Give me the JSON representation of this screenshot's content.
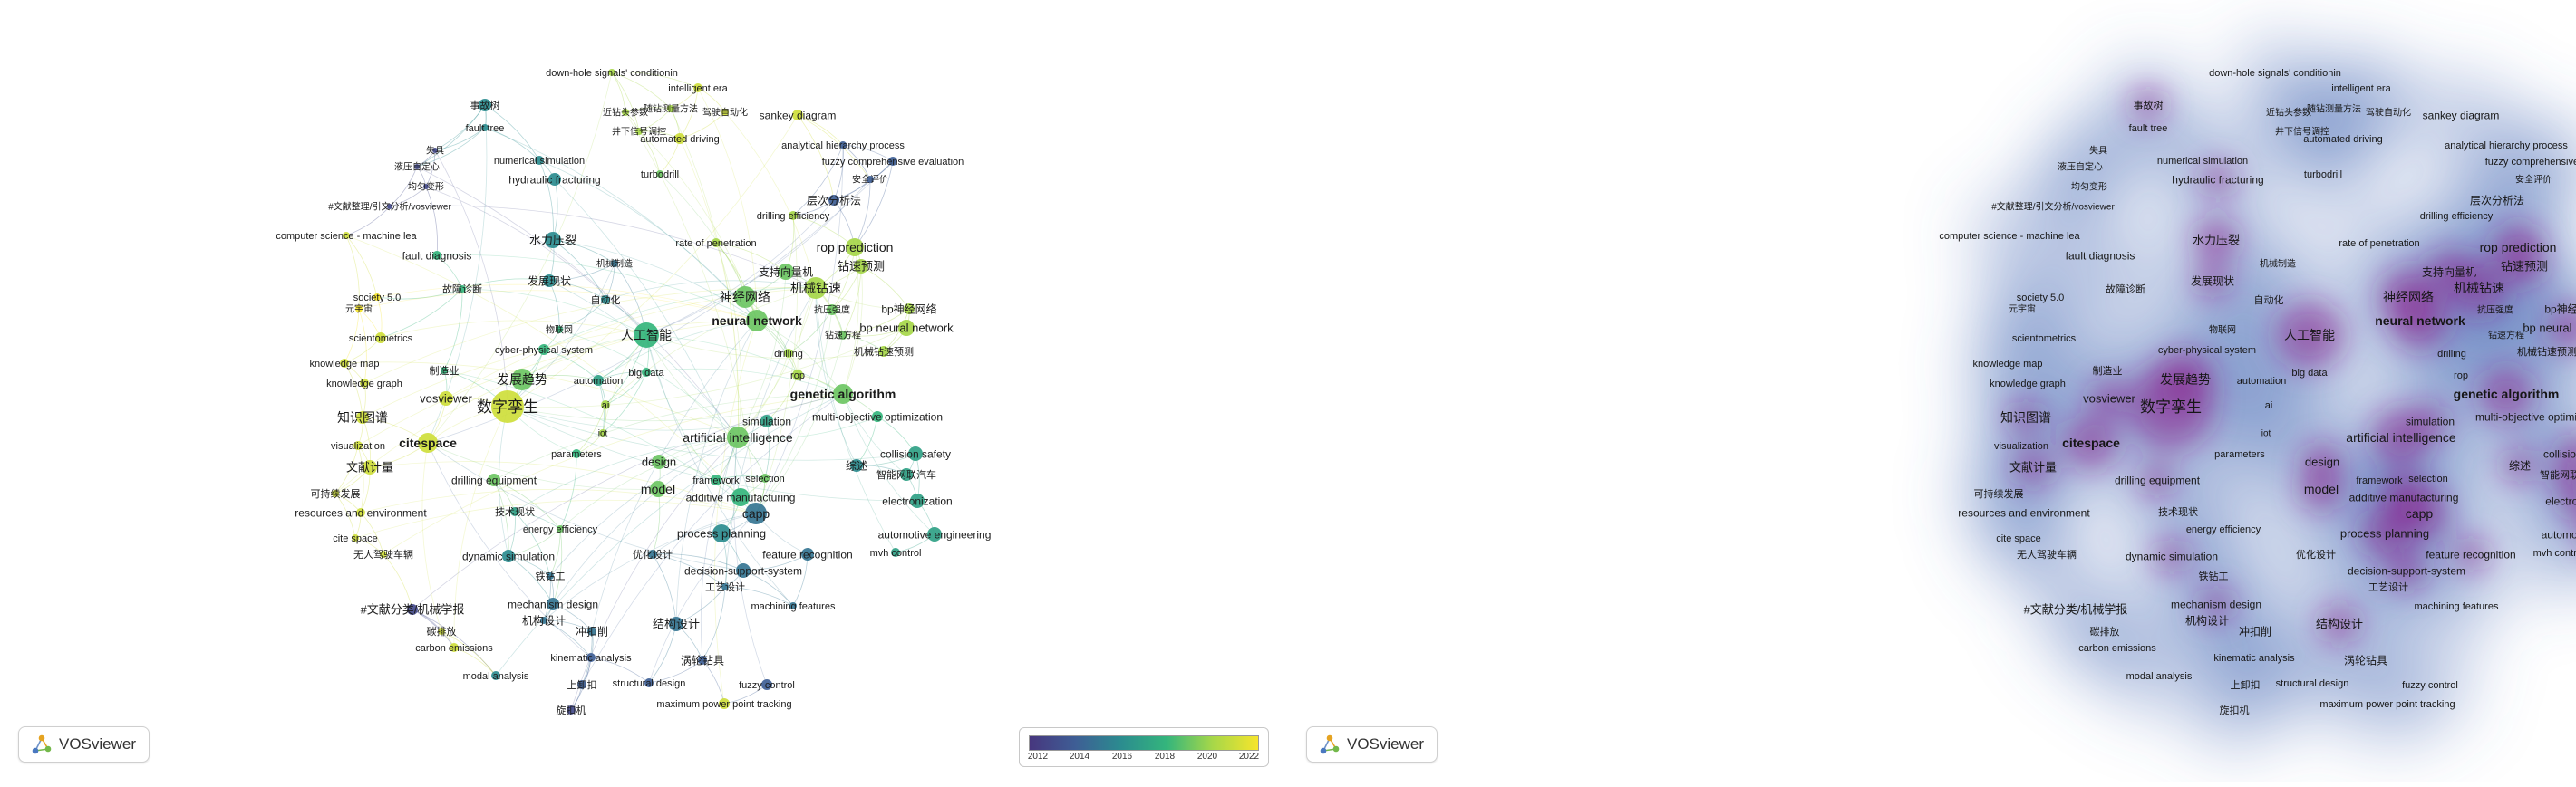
{
  "app": {
    "logo_text": "VOSviewer"
  },
  "legend": {
    "ticks": [
      "2012",
      "2014",
      "2016",
      "2018",
      "2020",
      "2022"
    ],
    "colors": [
      "#47367e",
      "#3e5e95",
      "#2b8c8f",
      "#34b57c",
      "#a6d749",
      "#f6e52c"
    ]
  },
  "colors": {
    "link": "#9fb9d6",
    "density_low": "#c9dcf2",
    "density_mid": "#4d6fb8",
    "density_high": "#8a1f8e"
  },
  "chart_data": {
    "type": "network",
    "views": [
      "overlay visualization",
      "density visualization"
    ],
    "nodes": [
      {
        "label": "down-hole signals' conditionin",
        "year": 2020
      },
      {
        "label": "intelligent era",
        "year": 2021
      },
      {
        "label": "事故树",
        "year": 2016
      },
      {
        "label": "近钻头参数",
        "year": 2020
      },
      {
        "label": "随钻测量方法",
        "year": 2020
      },
      {
        "label": "驾驶自动化",
        "year": 2021
      },
      {
        "label": "sankey diagram",
        "year": 2021
      },
      {
        "label": "fault tree",
        "year": 2016
      },
      {
        "label": "井下信号调控",
        "year": 2020
      },
      {
        "label": "automated driving",
        "year": 2021
      },
      {
        "label": "失具",
        "year": 2013
      },
      {
        "label": "analytical hierarchy process",
        "year": 2014
      },
      {
        "label": "液压自定心",
        "year": 2013
      },
      {
        "label": "numerical simulation",
        "year": 2016
      },
      {
        "label": "fuzzy comprehensive evaluation",
        "year": 2014
      },
      {
        "label": "均匀变形",
        "year": 2013
      },
      {
        "label": "hydraulic fracturing",
        "year": 2016
      },
      {
        "label": "turbodrill",
        "year": 2019
      },
      {
        "label": "安全评价",
        "year": 2014
      },
      {
        "label": "#文献整理/引文分析/vosviewer",
        "year": 2013
      },
      {
        "label": "层次分析法",
        "year": 2014
      },
      {
        "label": "drilling efficiency",
        "year": 2020
      },
      {
        "label": "computer science - machine lea",
        "year": 2021
      },
      {
        "label": "水力压裂",
        "year": 2016
      },
      {
        "label": "rate of penetration",
        "year": 2020
      },
      {
        "label": "rop prediction",
        "year": 2020
      },
      {
        "label": "fault diagnosis",
        "year": 2018
      },
      {
        "label": "机械制造",
        "year": 2015
      },
      {
        "label": "支持向量机",
        "year": 2019
      },
      {
        "label": "钻速预测",
        "year": 2020
      },
      {
        "label": "故障诊断",
        "year": 2018
      },
      {
        "label": "发展现状",
        "year": 2016
      },
      {
        "label": "神经网络",
        "year": 2019
      },
      {
        "label": "机械钻速",
        "year": 2020
      },
      {
        "label": "society 5.0",
        "year": 2022
      },
      {
        "label": "元宇宙",
        "year": 2022
      },
      {
        "label": "自动化",
        "year": 2016
      },
      {
        "label": "抗压强度",
        "year": 2019
      },
      {
        "label": "bp神经网络",
        "year": 2020
      },
      {
        "label": "neural network",
        "year": 2019
      },
      {
        "label": "bp neural network",
        "year": 2020
      },
      {
        "label": "scientometrics",
        "year": 2021
      },
      {
        "label": "物联网",
        "year": 2018
      },
      {
        "label": "人工智能",
        "year": 2018
      },
      {
        "label": "钻速方程",
        "year": 2019
      },
      {
        "label": "机械钻速预测",
        "year": 2020
      },
      {
        "label": "knowledge map",
        "year": 2021
      },
      {
        "label": "制造业",
        "year": 2018
      },
      {
        "label": "cyber-physical system",
        "year": 2018
      },
      {
        "label": "drilling",
        "year": 2020
      },
      {
        "label": "knowledge graph",
        "year": 2021
      },
      {
        "label": "发展趋势",
        "year": 2019
      },
      {
        "label": "automation",
        "year": 2017
      },
      {
        "label": "big data",
        "year": 2018
      },
      {
        "label": "rop",
        "year": 2020
      },
      {
        "label": "vosviewer",
        "year": 2021
      },
      {
        "label": "genetic algorithm",
        "year": 2019
      },
      {
        "label": "数字孪生",
        "year": 2021
      },
      {
        "label": "ai",
        "year": 2020
      },
      {
        "label": "知识图谱",
        "year": 2021
      },
      {
        "label": "simulation",
        "year": 2017
      },
      {
        "label": "multi-objective optimization",
        "year": 2018
      },
      {
        "label": "iot",
        "year": 2020
      },
      {
        "label": "artificial intelligence",
        "year": 2019
      },
      {
        "label": "visualization",
        "year": 2021
      },
      {
        "label": "citespace",
        "year": 2021
      },
      {
        "label": "collision safety",
        "year": 2017
      },
      {
        "label": "parameters",
        "year": 2018
      },
      {
        "label": "design",
        "year": 2019
      },
      {
        "label": "综述",
        "year": 2016
      },
      {
        "label": "智能网联汽车",
        "year": 2017
      },
      {
        "label": "文献计量",
        "year": 2021
      },
      {
        "label": "drilling equipment",
        "year": 2019
      },
      {
        "label": "framework",
        "year": 2018
      },
      {
        "label": "selection",
        "year": 2019
      },
      {
        "label": "electronization",
        "year": 2017
      },
      {
        "label": "可持续发展",
        "year": 2021
      },
      {
        "label": "model",
        "year": 2019
      },
      {
        "label": "additive manufacturing",
        "year": 2018
      },
      {
        "label": "resources and environment",
        "year": 2021
      },
      {
        "label": "技术现状",
        "year": 2017
      },
      {
        "label": "capp",
        "year": 2015
      },
      {
        "label": "energy efficiency",
        "year": 2019
      },
      {
        "label": "automotive engineering",
        "year": 2017
      },
      {
        "label": "cite space",
        "year": 2021
      },
      {
        "label": "process planning",
        "year": 2016
      },
      {
        "label": "无人驾驶车辆",
        "year": 2021
      },
      {
        "label": "优化设计",
        "year": 2015
      },
      {
        "label": "feature recognition",
        "year": 2015
      },
      {
        "label": "mvh control",
        "year": 2017
      },
      {
        "label": "dynamic simulation",
        "year": 2016
      },
      {
        "label": "decision-support-system",
        "year": 2015
      },
      {
        "label": "铁钻工",
        "year": 2015
      },
      {
        "label": "工艺设计",
        "year": 2015
      },
      {
        "label": "mechanism design",
        "year": 2015
      },
      {
        "label": "#文献分类/机械学报",
        "year": 2013
      },
      {
        "label": "machining features",
        "year": 2015
      },
      {
        "label": "机构设计",
        "year": 2015
      },
      {
        "label": "冲扣削",
        "year": 2015
      },
      {
        "label": "结构设计",
        "year": 2015
      },
      {
        "label": "碳排放",
        "year": 2021
      },
      {
        "label": "carbon emissions",
        "year": 2021
      },
      {
        "label": "kinematic analysis",
        "year": 2014
      },
      {
        "label": "涡轮钻具",
        "year": 2014
      },
      {
        "label": "modal analysis",
        "year": 2016
      },
      {
        "label": "上卸扣",
        "year": 2014
      },
      {
        "label": "structural design",
        "year": 2014
      },
      {
        "label": "fuzzy control",
        "year": 2014
      },
      {
        "label": "maximum power point tracking",
        "year": 2021
      },
      {
        "label": "旋扣机",
        "year": 2013
      }
    ]
  }
}
